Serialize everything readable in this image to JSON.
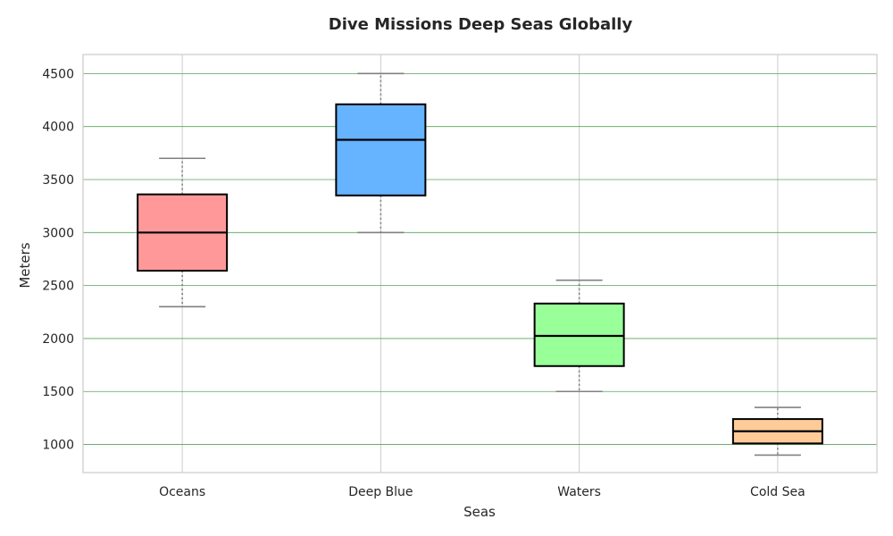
{
  "chart_data": {
    "type": "box",
    "title": "Dive Missions Deep Seas Globally",
    "xlabel": "Seas",
    "ylabel": "Meters",
    "ylim": [
      735,
      4680
    ],
    "yticks": [
      1000,
      1500,
      2000,
      2500,
      3000,
      3500,
      4000,
      4500
    ],
    "ytick_labels": [
      "1000",
      "1500",
      "2000",
      "2500",
      "3000",
      "3500",
      "4000",
      "4500"
    ],
    "categories": [
      "Oceans",
      "Deep Blue",
      "Waters",
      "Cold Sea"
    ],
    "boxes": [
      {
        "category": "Oceans",
        "min": 2300,
        "q1": 2640,
        "median": 3000,
        "q3": 3360,
        "max": 3700,
        "color": "#ff9999"
      },
      {
        "category": "Deep Blue",
        "min": 3000,
        "q1": 3350,
        "median": 3875,
        "q3": 4210,
        "max": 4500,
        "color": "#66b3ff"
      },
      {
        "category": "Waters",
        "min": 1500,
        "q1": 1740,
        "median": 2025,
        "q3": 2330,
        "max": 2550,
        "color": "#99ff99"
      },
      {
        "category": "Cold Sea",
        "min": 900,
        "q1": 1010,
        "median": 1125,
        "q3": 1240,
        "max": 1350,
        "color": "#ffcc99"
      }
    ],
    "grid": {
      "horizontal": true,
      "horizontal_color": "#5aa05a",
      "vertical": true,
      "vertical_color": "#cccccc"
    },
    "legend": "none"
  }
}
